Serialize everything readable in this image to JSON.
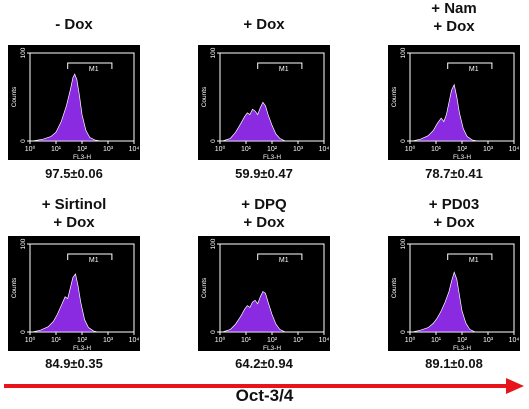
{
  "chart_data": {
    "type": "histogram-grid",
    "panel_colors": {
      "fill": "#8a2be2",
      "background": "#000000",
      "axis": "#ffffff"
    },
    "axis_text": {
      "xlabel": "FL3-H",
      "ylabel": "Counts",
      "gate_label": "M1"
    },
    "x_ticks": [
      "10⁰",
      "10¹",
      "10²",
      "10³",
      "10⁴"
    ],
    "y_ticks": [
      "0",
      "100"
    ],
    "xlim": [
      0,
      4
    ],
    "ylim": [
      0,
      100
    ],
    "panels": [
      {
        "label": [
          "- Dox"
        ],
        "value": "97.5±0.06",
        "peak": 1.7,
        "curve": [
          [
            0.1,
            0
          ],
          [
            0.5,
            2
          ],
          [
            0.8,
            5
          ],
          [
            1.0,
            10
          ],
          [
            1.2,
            22
          ],
          [
            1.4,
            40
          ],
          [
            1.55,
            58
          ],
          [
            1.65,
            72
          ],
          [
            1.72,
            76
          ],
          [
            1.8,
            70
          ],
          [
            1.9,
            52
          ],
          [
            2.0,
            30
          ],
          [
            2.15,
            12
          ],
          [
            2.3,
            4
          ],
          [
            2.5,
            1
          ],
          [
            2.7,
            0
          ]
        ]
      },
      {
        "label": [
          "+ Dox"
        ],
        "value": "59.9±0.47",
        "curve": [
          [
            0.1,
            0
          ],
          [
            0.4,
            3
          ],
          [
            0.6,
            10
          ],
          [
            0.8,
            20
          ],
          [
            0.95,
            28
          ],
          [
            1.05,
            32
          ],
          [
            1.15,
            30
          ],
          [
            1.25,
            36
          ],
          [
            1.35,
            34
          ],
          [
            1.45,
            30
          ],
          [
            1.55,
            38
          ],
          [
            1.65,
            44
          ],
          [
            1.75,
            40
          ],
          [
            1.85,
            30
          ],
          [
            2.0,
            18
          ],
          [
            2.15,
            8
          ],
          [
            2.3,
            3
          ],
          [
            2.5,
            0
          ]
        ]
      },
      {
        "label": [
          "+ Nam",
          "+ Dox"
        ],
        "value": "78.7±0.41",
        "curve": [
          [
            0.1,
            0
          ],
          [
            0.4,
            2
          ],
          [
            0.7,
            6
          ],
          [
            0.9,
            12
          ],
          [
            1.05,
            20
          ],
          [
            1.2,
            26
          ],
          [
            1.3,
            22
          ],
          [
            1.4,
            30
          ],
          [
            1.5,
            44
          ],
          [
            1.6,
            58
          ],
          [
            1.7,
            64
          ],
          [
            1.8,
            50
          ],
          [
            1.9,
            32
          ],
          [
            2.05,
            14
          ],
          [
            2.2,
            5
          ],
          [
            2.4,
            1
          ],
          [
            2.6,
            0
          ]
        ]
      },
      {
        "label": [
          "+ Sirtinol",
          "+ Dox"
        ],
        "value": "84.9±0.35",
        "curve": [
          [
            0.1,
            0
          ],
          [
            0.4,
            2
          ],
          [
            0.7,
            6
          ],
          [
            0.9,
            12
          ],
          [
            1.05,
            20
          ],
          [
            1.2,
            30
          ],
          [
            1.35,
            40
          ],
          [
            1.45,
            38
          ],
          [
            1.55,
            50
          ],
          [
            1.65,
            62
          ],
          [
            1.75,
            66
          ],
          [
            1.85,
            52
          ],
          [
            1.95,
            34
          ],
          [
            2.1,
            14
          ],
          [
            2.25,
            5
          ],
          [
            2.45,
            1
          ],
          [
            2.6,
            0
          ]
        ]
      },
      {
        "label": [
          "+ DPQ",
          "+ Dox"
        ],
        "value": "64.2±0.94",
        "curve": [
          [
            0.1,
            0
          ],
          [
            0.4,
            3
          ],
          [
            0.6,
            9
          ],
          [
            0.8,
            18
          ],
          [
            0.95,
            26
          ],
          [
            1.05,
            30
          ],
          [
            1.15,
            28
          ],
          [
            1.25,
            34
          ],
          [
            1.35,
            36
          ],
          [
            1.45,
            32
          ],
          [
            1.55,
            40
          ],
          [
            1.65,
            46
          ],
          [
            1.75,
            44
          ],
          [
            1.85,
            34
          ],
          [
            2.0,
            20
          ],
          [
            2.15,
            9
          ],
          [
            2.3,
            3
          ],
          [
            2.5,
            0
          ]
        ]
      },
      {
        "label": [
          "+ PD03",
          "+ Dox"
        ],
        "value": "89.1±0.08",
        "curve": [
          [
            0.1,
            0
          ],
          [
            0.4,
            2
          ],
          [
            0.7,
            5
          ],
          [
            0.9,
            10
          ],
          [
            1.05,
            16
          ],
          [
            1.2,
            24
          ],
          [
            1.35,
            34
          ],
          [
            1.5,
            46
          ],
          [
            1.6,
            58
          ],
          [
            1.7,
            68
          ],
          [
            1.8,
            60
          ],
          [
            1.9,
            42
          ],
          [
            2.0,
            24
          ],
          [
            2.15,
            10
          ],
          [
            2.3,
            3
          ],
          [
            2.5,
            0
          ]
        ]
      }
    ],
    "arrow_label": "Oct-3/4",
    "arrow_color": "#e8141b"
  }
}
